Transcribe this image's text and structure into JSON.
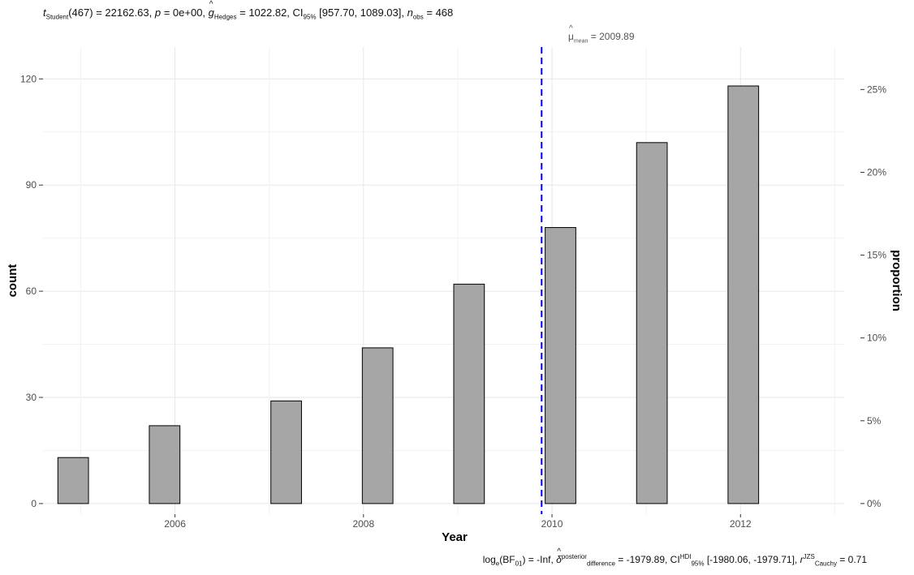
{
  "chart_data": {
    "type": "bar",
    "title": {
      "stat_name": "t",
      "stat_sub": "Student",
      "df": "(467)",
      "stat_value": "= 22162.63,",
      "p_label": "p",
      "p_value": "= 0e+00,",
      "es_name": "g",
      "es_sub": "Hedges",
      "es_value": "= 1022.82, CI",
      "ci_sub": "95%",
      "ci_value": "[957.70, 1089.03],",
      "n_label": "n",
      "n_sub": "obs",
      "n_value": "= 468"
    },
    "caption": {
      "bf_label": "log",
      "bf_base": "e",
      "bf_paren": "(BF",
      "bf_sub": "01",
      "bf_value": ") = -Inf,",
      "delta": "δ",
      "delta_sup": "posterior",
      "delta_sub": "difference",
      "delta_value": "= -1979.89, CI",
      "ci_sup": "HDI",
      "ci_sub": "95%",
      "ci_value": "[-1980.06, -1979.71],",
      "r_label": "r",
      "r_sup": "JZS",
      "r_sub": "Cauchy",
      "r_value": "= 0.71"
    },
    "xlabel": "Year",
    "ylabel": "count",
    "y2label": "proportion",
    "x_ticks": [
      2006,
      2008,
      2010,
      2012
    ],
    "x_tick_labels": [
      "2006",
      "2008",
      "2010",
      "2012"
    ],
    "xlim": [
      2004.6,
      2013.1
    ],
    "y_ticks": [
      0,
      30,
      60,
      90,
      120
    ],
    "y_tick_labels": [
      "0",
      "30",
      "60",
      "90",
      "120"
    ],
    "ylim": [
      -3,
      129
    ],
    "y2_ticks": [
      0,
      0.05,
      0.1,
      0.15,
      0.2,
      0.25
    ],
    "y2_tick_labels": [
      "0%",
      "5%",
      "10%",
      "15%",
      "20%",
      "25%"
    ],
    "total_n": 468,
    "bin_width": 0.325,
    "bins": [
      {
        "center": 2004.92,
        "count": 13
      },
      {
        "center": 2005.89,
        "count": 22
      },
      {
        "center": 2007.18,
        "count": 29
      },
      {
        "center": 2008.15,
        "count": 44
      },
      {
        "center": 2009.12,
        "count": 62
      },
      {
        "center": 2010.09,
        "count": 78
      },
      {
        "center": 2011.06,
        "count": 102
      },
      {
        "center": 2012.03,
        "count": 118
      }
    ],
    "mean_line": {
      "value": 2009.89,
      "label_sym": "μ",
      "label_sub": "mean",
      "label_value": "= 2009.89",
      "color": "#0000FF"
    },
    "bar_fill": "#A6A6A6",
    "bar_stroke": "#000000",
    "grid": true
  }
}
